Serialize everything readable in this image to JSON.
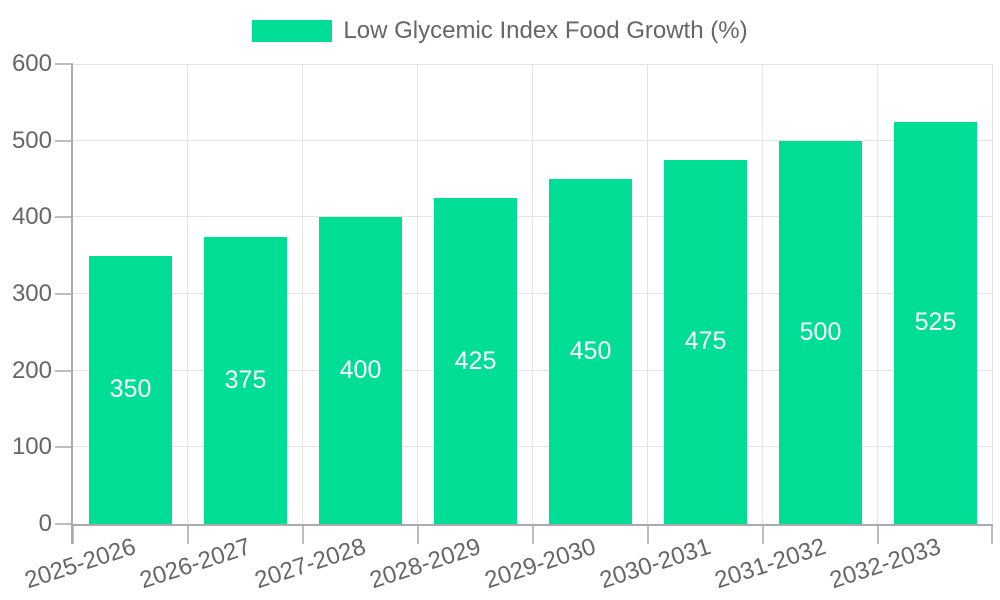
{
  "legend": {
    "label": "Low Glycemic Index Food Growth (%)"
  },
  "chart_data": {
    "type": "bar",
    "title": "",
    "categories": [
      "2025-2026",
      "2026-2027",
      "2027-2028",
      "2028-2029",
      "2029-2030",
      "2030-2031",
      "2031-2032",
      "2032-2033"
    ],
    "series": [
      {
        "name": "Low Glycemic Index Food Growth (%)",
        "values": [
          350,
          375,
          400,
          425,
          450,
          475,
          500,
          525
        ]
      }
    ],
    "bar_value_labels": [
      "350",
      "375",
      "400",
      "425",
      "450",
      "475",
      "500",
      "525"
    ],
    "xlabel": "",
    "ylabel": "",
    "ylim": [
      0,
      600
    ],
    "yticks": [
      0,
      100,
      200,
      300,
      400,
      500,
      600
    ],
    "grid": true,
    "legend_position": "top",
    "x_label_rotation_deg": -18,
    "colors": {
      "bar": "#00DE95",
      "bar_label": "#FFFFFF",
      "axis_text": "#666666",
      "gridline": "#E3E3E3",
      "axis_line": "#ABABAB",
      "tick": "#BDBDBD",
      "background": "#FFFFFF"
    }
  }
}
